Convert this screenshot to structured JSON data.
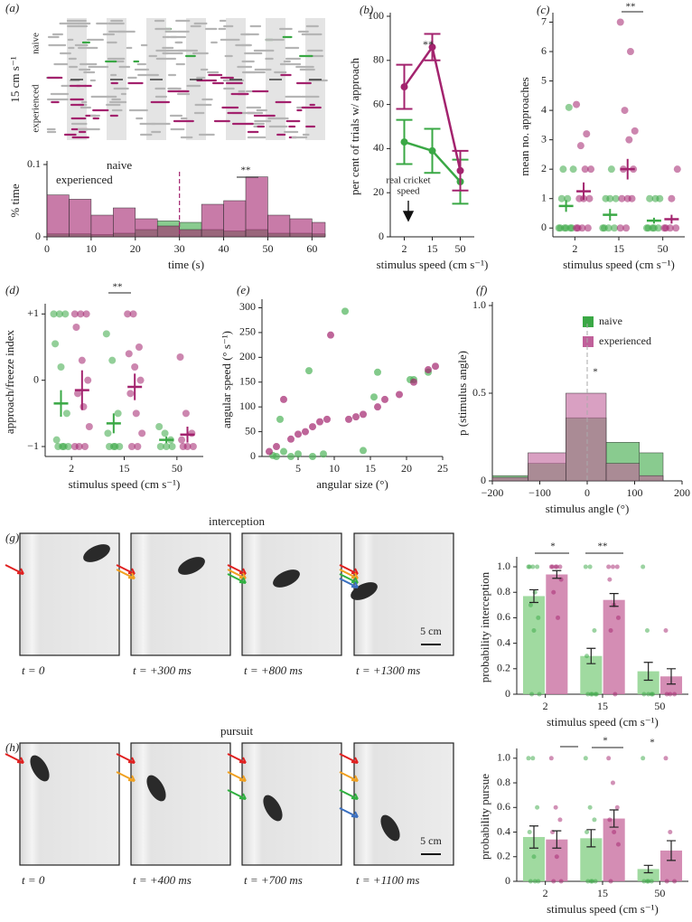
{
  "chart_data": [
    {
      "panel": "(a)",
      "type": "histogram",
      "raster": {
        "label": "15 cm s⁻¹",
        "groups": [
          "naive",
          "experienced"
        ]
      },
      "bins": [
        0,
        5,
        10,
        15,
        20,
        25,
        30,
        35,
        40,
        45,
        50,
        55,
        60,
        65
      ],
      "xlim": [
        0,
        63
      ],
      "xticks": [
        0,
        10,
        20,
        30,
        40,
        50,
        60
      ],
      "ylim": [
        0,
        0.1
      ],
      "yticks": [
        0,
        0.1
      ],
      "xlabel": "time (s)",
      "ylabel": "% time",
      "series": [
        {
          "name": "naive",
          "color": "#3aa845",
          "values": [
            0.004,
            0.004,
            0.003,
            0.005,
            0.01,
            0.022,
            0.02,
            0.01,
            0.008,
            0.01,
            0.005,
            0.005,
            0.004
          ]
        },
        {
          "name": "experienced",
          "color": "#a3236e",
          "values": [
            0.058,
            0.052,
            0.03,
            0.04,
            0.025,
            0.015,
            0.01,
            0.045,
            0.05,
            0.083,
            0.03,
            0.025,
            0.02
          ]
        }
      ],
      "annotations": [
        "**"
      ]
    },
    {
      "panel": "(b)",
      "type": "line",
      "categories": [
        "2",
        "15",
        "50"
      ],
      "ylim": [
        0,
        100
      ],
      "yticks": [
        0,
        20,
        40,
        60,
        80,
        100
      ],
      "xlabel": "stimulus speed (cm s⁻¹)",
      "ylabel": "per cent of trials w/ approach",
      "series": [
        {
          "name": "naive",
          "color": "#3aa845",
          "values": [
            43,
            39,
            25
          ],
          "errors": [
            10,
            10,
            10
          ]
        },
        {
          "name": "experienced",
          "color": "#a3236e",
          "values": [
            68,
            86,
            30
          ],
          "errors": [
            10,
            6,
            9
          ]
        }
      ],
      "annotations": [
        "**",
        "real cricket",
        "speed"
      ]
    },
    {
      "panel": "(c)",
      "type": "strip",
      "categories": [
        "2",
        "15",
        "50"
      ],
      "ylim": [
        -0.3,
        7.2
      ],
      "yticks": [
        0,
        1,
        2,
        3,
        4,
        5,
        6,
        7
      ],
      "xlabel": "stimulus speed (cm s⁻¹)",
      "ylabel": "mean no. approaches",
      "series": [
        {
          "name": "naive",
          "color": "#3aa845",
          "values": [
            0.75,
            0.45,
            0.25
          ],
          "errors": [
            0.2,
            0.2,
            0.1
          ],
          "points": [
            [
              0,
              0,
              0,
              0,
              0,
              0,
              1,
              1,
              2,
              2,
              4.1
            ],
            [
              0,
              0,
              0,
              0,
              1,
              1,
              1,
              2
            ],
            [
              0,
              0,
              0,
              0,
              0,
              1,
              1,
              1
            ]
          ]
        },
        {
          "name": "experienced",
          "color": "#a3236e",
          "values": [
            1.25,
            2.0,
            0.3
          ],
          "errors": [
            0.3,
            0.35,
            0.15
          ],
          "points": [
            [
              0,
              0,
              0,
              0,
              1,
              1,
              1,
              2,
              2,
              2.8,
              3.2,
              4.2
            ],
            [
              0,
              0,
              1,
              1,
              1,
              2,
              2,
              3,
              3.3,
              4,
              6,
              7
            ],
            [
              0,
              0,
              0,
              0,
              1,
              2
            ]
          ]
        }
      ],
      "annotations": [
        "**"
      ]
    },
    {
      "panel": "(d)",
      "type": "strip",
      "categories": [
        "2",
        "15",
        "50"
      ],
      "ylim": [
        -1.15,
        1.1
      ],
      "yticks": [
        {
          "value": -1,
          "label": "−1"
        },
        0,
        {
          "value": 1,
          "label": "+1"
        }
      ],
      "xlabel": "stimulus speed (cm s⁻¹)",
      "ylabel": "approach/freeze index",
      "series": [
        {
          "name": "naive",
          "color": "#3aa845",
          "values": [
            -0.35,
            -0.65,
            -0.9
          ],
          "errors": [
            0.2,
            0.15,
            0.05
          ],
          "points": [
            [
              1,
              1,
              1,
              0.55,
              0.2,
              -0.5,
              -0.9,
              -1,
              -1,
              -1,
              -1
            ],
            [
              0.7,
              0.3,
              -0.5,
              -0.8,
              -1,
              -1,
              -1,
              -1
            ],
            [
              -0.7,
              -0.8,
              -0.9,
              -1,
              -1,
              -1
            ]
          ]
        },
        {
          "name": "experienced",
          "color": "#a3236e",
          "values": [
            -0.15,
            -0.1,
            -0.82
          ],
          "errors": [
            0.3,
            0.2,
            0.12
          ],
          "points": [
            [
              1,
              1,
              1,
              0.8,
              0.3,
              0,
              -0.2,
              -0.4,
              -0.7,
              -1,
              -1,
              -1
            ],
            [
              1,
              1,
              0.5,
              0.4,
              0.2,
              0,
              -0.2,
              -0.5,
              -0.8,
              -1,
              -1
            ],
            [
              0.35,
              -0.5,
              -0.8,
              -0.9,
              -1,
              -1,
              -1
            ]
          ]
        }
      ],
      "annotations": [
        "**"
      ]
    },
    {
      "panel": "(e)",
      "type": "scatter",
      "xlim": [
        0,
        25
      ],
      "xticks": [
        5,
        10,
        15,
        20,
        25
      ],
      "ylim": [
        0,
        310
      ],
      "yticks": [
        0,
        50,
        100,
        150,
        200,
        250,
        300
      ],
      "xlabel": "angular size (°)",
      "ylabel": "angular speed (° s⁻¹)",
      "series": [
        {
          "color": "#4fb35a",
          "x": [
            6.5,
            11.5,
            16,
            14,
            20.5,
            21,
            23,
            2.5,
            3,
            4,
            5,
            7,
            8.5,
            1.5,
            2,
            15.5
          ],
          "values": [
            173,
            293,
            170,
            12,
            155,
            155,
            170,
            75,
            10,
            0,
            5,
            0,
            5,
            2,
            0,
            120
          ]
        },
        {
          "color": "#a3236e",
          "x": [
            9.5,
            3,
            7,
            9,
            12,
            13,
            14,
            16,
            17,
            19,
            21,
            23,
            24,
            1,
            2,
            4,
            5,
            6,
            8
          ],
          "values": [
            245,
            115,
            60,
            75,
            75,
            80,
            85,
            100,
            115,
            125,
            150,
            175,
            182,
            10,
            20,
            35,
            45,
            50,
            70
          ]
        }
      ],
      "annotations": []
    },
    {
      "panel": "(f)",
      "type": "histogram",
      "legend": "upper right",
      "bins": [
        -200,
        -125,
        -45,
        40,
        110,
        160
      ],
      "xlim": [
        -200,
        200
      ],
      "xticks": [
        {
          "value": -200,
          "label": "−200"
        },
        {
          "value": -100,
          "label": "−100"
        },
        0,
        100,
        200
      ],
      "ylim": [
        0,
        1
      ],
      "yticks": [
        0,
        0.5,
        {
          "value": 1,
          "label": "1.0"
        }
      ],
      "xlabel": "stimulus angle (°)",
      "ylabel": "p (stimulus angle)",
      "series": [
        {
          "name": "naive",
          "color": "#3aa845",
          "values": [
            0.03,
            0.1,
            0.36,
            0.22,
            0.16
          ]
        },
        {
          "name": "experienced",
          "color": "#c0609a",
          "values": [
            0.02,
            0.16,
            0.5,
            0.1,
            0.03
          ]
        }
      ],
      "annotations": [
        "*"
      ]
    },
    {
      "type": "bar",
      "categories": [
        "2",
        "15",
        "50"
      ],
      "ylim": [
        0,
        1.05
      ],
      "yticks": [
        0,
        0.2,
        0.4,
        0.6,
        0.8,
        {
          "value": 1,
          "label": "1.0"
        }
      ],
      "xlabel": "stimulus speed (cm s⁻¹)",
      "ylabel": "probability interception",
      "series": [
        {
          "name": "naive",
          "color": "#8fd48f",
          "values": [
            0.77,
            0.3,
            0.18
          ],
          "errors": [
            0.05,
            0.06,
            0.07
          ],
          "points": [
            [
              1,
              1,
              1,
              1,
              0.5,
              0.6,
              0.7,
              0.8,
              0,
              0
            ],
            [
              1,
              1,
              0.5,
              0.3,
              0,
              0,
              0,
              0,
              0
            ],
            [
              1,
              0.5,
              0,
              0,
              0,
              0
            ]
          ]
        },
        {
          "name": "experienced",
          "color": "#cc79a7",
          "values": [
            0.94,
            0.74,
            0.14
          ],
          "errors": [
            0.03,
            0.05,
            0.06
          ],
          "points": [
            [
              1,
              1,
              1,
              1,
              1,
              0.9,
              0.8,
              0.6
            ],
            [
              1,
              1,
              1,
              0.9,
              0.7,
              0.6,
              0.5,
              0
            ],
            [
              0.5,
              0,
              0,
              0
            ]
          ]
        }
      ],
      "annotations": [
        "*",
        "**"
      ]
    },
    {
      "type": "bar",
      "categories": [
        "2",
        "15",
        "50"
      ],
      "ylim": [
        0,
        1.05
      ],
      "yticks": [
        0,
        0.2,
        0.4,
        0.6,
        0.8,
        {
          "value": 1,
          "label": "1.0"
        }
      ],
      "xlabel": "stimulus speed (cm s⁻¹)",
      "ylabel": "probability pursue",
      "series": [
        {
          "name": "naive",
          "color": "#8fd48f",
          "values": [
            0.36,
            0.35,
            0.1
          ],
          "errors": [
            0.09,
            0.07,
            0.03
          ],
          "points": [
            [
              1,
              1,
              0.6,
              0.4,
              0.2,
              0,
              0,
              0
            ],
            [
              1,
              0.6,
              0.5,
              0.4,
              0,
              0,
              0,
              0
            ],
            [
              1,
              0,
              0,
              0,
              0
            ]
          ]
        },
        {
          "name": "experienced",
          "color": "#cc79a7",
          "values": [
            0.34,
            0.51,
            0.25
          ],
          "errors": [
            0.07,
            0.07,
            0.08
          ],
          "points": [
            [
              1,
              0.6,
              0.5,
              0.4,
              0.2,
              0,
              0
            ],
            [
              1,
              0.8,
              0.6,
              0.5,
              0.4,
              0.3,
              0
            ],
            [
              1,
              0.4,
              0,
              0
            ]
          ]
        }
      ],
      "annotations": [
        "*",
        "*"
      ]
    }
  ],
  "photos": [
    {
      "panel": "(g)",
      "title": "interception",
      "frames": [
        "t = 0",
        "t = +300 ms",
        "t = +800 ms",
        "t = +1300 ms"
      ],
      "scale": "5 cm"
    },
    {
      "panel": "(h)",
      "title": "pursuit",
      "frames": [
        "t = 0",
        "t = +400 ms",
        "t = +700 ms",
        "t = +1100 ms"
      ],
      "scale": "5 cm"
    }
  ]
}
